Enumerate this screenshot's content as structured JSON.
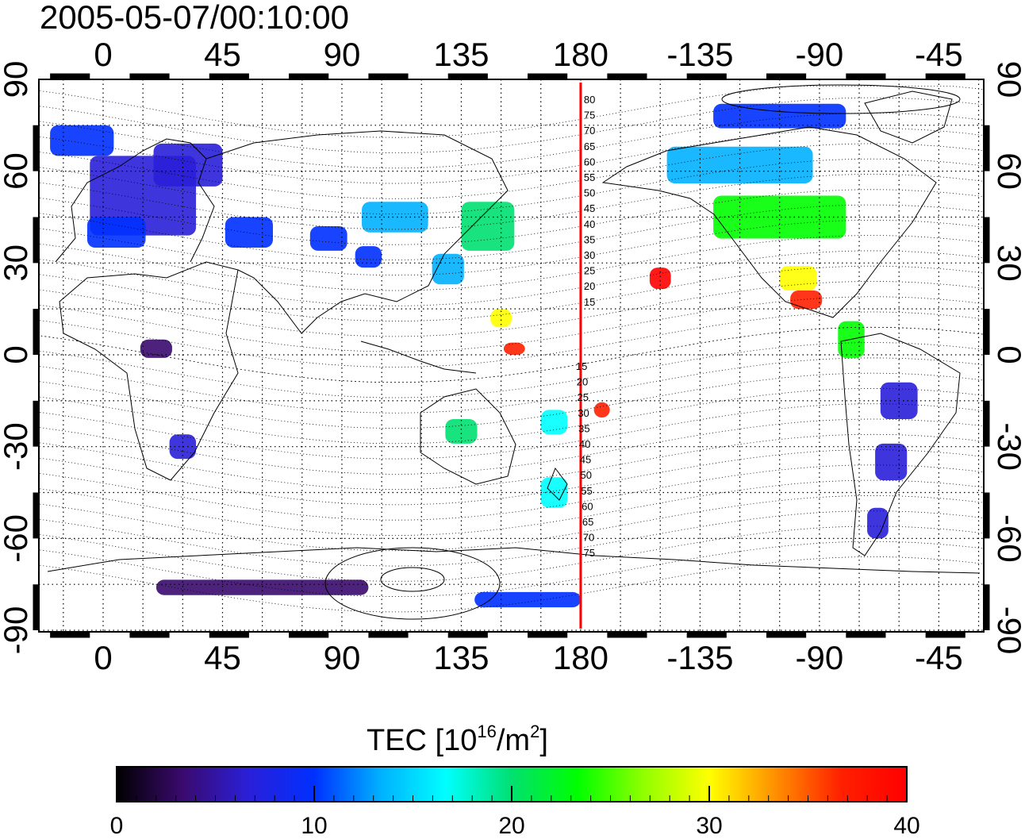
{
  "title": "2005-05-07/00:10:00",
  "map": {
    "lon_ticks": [
      "0",
      "45",
      "90",
      "135",
      "180",
      "-135",
      "-90",
      "-45"
    ],
    "lat_ticks": [
      "90",
      "60",
      "30",
      "0",
      "-30",
      "-60",
      "-90"
    ],
    "meridian_lon": 180,
    "meridian_color": "#ff0000",
    "mlat_labels_north": [
      "80",
      "75",
      "70",
      "65",
      "60",
      "55",
      "50",
      "45",
      "40",
      "35",
      "30",
      "25",
      "20",
      "15"
    ],
    "mlat_labels_south": [
      "15",
      "20",
      "25",
      "30",
      "35",
      "40",
      "45",
      "50",
      "55",
      "60",
      "65",
      "70",
      "75"
    ]
  },
  "colorbar": {
    "label_main": "TEC  [10",
    "label_sup1": "16",
    "label_mid": "/m",
    "label_sup2": "2",
    "label_end": "]",
    "ticks": [
      "0",
      "10",
      "20",
      "30",
      "40"
    ],
    "range": [
      0,
      40
    ],
    "colors": [
      "#000000",
      "#3a0a6e",
      "#2a1fd8",
      "#0030ff",
      "#00b0ff",
      "#00ffff",
      "#00e070",
      "#00ff00",
      "#90ff00",
      "#ffff00",
      "#ff9000",
      "#ff2000",
      "#ff0000"
    ]
  },
  "tec_patches": [
    {
      "lon": 15,
      "lat": 52,
      "w": 40,
      "h": 26,
      "tec": 7
    },
    {
      "lon": 32,
      "lat": 62,
      "w": 26,
      "h": 14,
      "tec": 6
    },
    {
      "lon": 5,
      "lat": 40,
      "w": 22,
      "h": 10,
      "tec": 10
    },
    {
      "lon": -8,
      "lat": 70,
      "w": 24,
      "h": 10,
      "tec": 11
    },
    {
      "lon": 55,
      "lat": 40,
      "w": 18,
      "h": 10,
      "tec": 9
    },
    {
      "lon": 110,
      "lat": 45,
      "w": 25,
      "h": 10,
      "tec": 13
    },
    {
      "lon": 85,
      "lat": 38,
      "w": 14,
      "h": 8,
      "tec": 9
    },
    {
      "lon": 100,
      "lat": 32,
      "w": 10,
      "h": 7,
      "tec": 11
    },
    {
      "lon": 145,
      "lat": 42,
      "w": 20,
      "h": 16,
      "tec": 21
    },
    {
      "lon": 130,
      "lat": 28,
      "w": 12,
      "h": 10,
      "tec": 13
    },
    {
      "lon": 150,
      "lat": 12,
      "w": 8,
      "h": 6,
      "tec": 30
    },
    {
      "lon": 210,
      "lat": 25,
      "w": 8,
      "h": 7,
      "tec": 39
    },
    {
      "lon": 255,
      "lat": 45,
      "w": 50,
      "h": 14,
      "tec": 22
    },
    {
      "lon": 240,
      "lat": 62,
      "w": 55,
      "h": 12,
      "tec": 14
    },
    {
      "lon": 255,
      "lat": 78,
      "w": 50,
      "h": 8,
      "tec": 10
    },
    {
      "lon": 262,
      "lat": 25,
      "w": 14,
      "h": 8,
      "tec": 30
    },
    {
      "lon": 265,
      "lat": 18,
      "w": 12,
      "h": 6,
      "tec": 38
    },
    {
      "lon": 282,
      "lat": 5,
      "w": 10,
      "h": 12,
      "tec": 23
    },
    {
      "lon": 300,
      "lat": -15,
      "w": 14,
      "h": 12,
      "tec": 7
    },
    {
      "lon": 297,
      "lat": -35,
      "w": 12,
      "h": 12,
      "tec": 8
    },
    {
      "lon": 292,
      "lat": -55,
      "w": 8,
      "h": 10,
      "tec": 5
    },
    {
      "lon": 30,
      "lat": -30,
      "w": 10,
      "h": 8,
      "tec": 5
    },
    {
      "lon": 20,
      "lat": 2,
      "w": 12,
      "h": 6,
      "tec": 2
    },
    {
      "lon": 135,
      "lat": -25,
      "w": 12,
      "h": 8,
      "tec": 20
    },
    {
      "lon": 170,
      "lat": -45,
      "w": 10,
      "h": 10,
      "tec": 17
    },
    {
      "lon": 170,
      "lat": -22,
      "w": 10,
      "h": 8,
      "tec": 18
    },
    {
      "lon": 155,
      "lat": 2,
      "w": 8,
      "h": 4,
      "tec": 35
    },
    {
      "lon": 188,
      "lat": -18,
      "w": 6,
      "h": 5,
      "tec": 37
    },
    {
      "lon": 60,
      "lat": -76,
      "w": 80,
      "h": 5,
      "tec": 4
    },
    {
      "lon": 160,
      "lat": -80,
      "w": 40,
      "h": 5,
      "tec": 9
    }
  ]
}
